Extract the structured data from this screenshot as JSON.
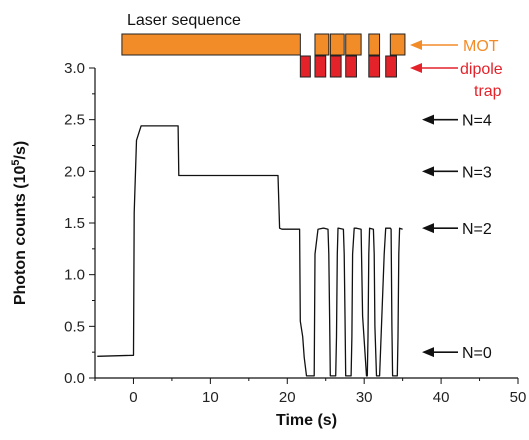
{
  "chart_data": {
    "type": "line",
    "xlabel": "Time (s)",
    "ylabel_main": "Photon counts (10",
    "ylabel_sup": "5",
    "ylabel_tail": "/s)",
    "xlim": [
      -5,
      50
    ],
    "ylim": [
      0,
      3.0
    ],
    "xticks": [
      0,
      10,
      20,
      30,
      40,
      50
    ],
    "xtick_labels": [
      "0",
      "10",
      "20",
      "30",
      "40",
      "50"
    ],
    "yticks": [
      0,
      0.5,
      1.0,
      1.5,
      2.0,
      2.5,
      3.0
    ],
    "ytick_labels": [
      "0.0",
      "0.5",
      "1.0",
      "1.5",
      "2.0",
      "2.5",
      "3.0"
    ],
    "series": [
      {
        "x": [
          -4.7,
          0.0,
          0.1,
          0.4,
          1.0,
          5.8,
          5.9,
          6.2,
          18.8,
          19.0,
          19.3,
          21.6,
          21.7,
          22.0,
          22.2,
          22.5,
          22.6,
          22.7,
          22.8,
          23.5,
          23.6,
          24.0,
          24.6,
          24.8,
          25.3,
          25.4,
          25.5,
          25.6,
          25.7,
          26.3,
          26.4,
          26.5,
          26.6,
          26.7,
          27.3,
          27.4,
          27.5,
          27.6,
          27.7,
          28.3,
          28.4,
          28.5,
          28.7,
          29.0,
          29.6,
          29.8,
          30.3,
          30.4,
          30.5,
          30.6,
          30.7,
          31.2,
          31.3,
          31.4,
          31.6,
          32.0,
          32.6,
          32.8,
          33.4,
          33.5,
          33.6,
          33.7,
          33.8,
          34.3,
          34.4,
          34.5,
          34.6,
          35.0
        ],
        "y": [
          0.21,
          0.22,
          1.6,
          2.3,
          2.44,
          2.44,
          1.96,
          1.96,
          1.96,
          1.45,
          1.44,
          1.44,
          0.55,
          0.4,
          0.2,
          0.02,
          0.02,
          0.02,
          0.02,
          0.02,
          1.2,
          1.44,
          1.45,
          1.45,
          1.44,
          1.2,
          0.6,
          0.02,
          0.02,
          0.02,
          0.4,
          1.2,
          1.45,
          1.45,
          1.44,
          1.2,
          0.6,
          0.02,
          0.02,
          0.02,
          0.4,
          1.2,
          1.45,
          1.45,
          1.44,
          0.6,
          0.02,
          0.02,
          0.4,
          1.2,
          1.45,
          1.44,
          1.2,
          0.5,
          0.02,
          0.02,
          1.2,
          1.45,
          1.45,
          1.44,
          0.5,
          0.02,
          0.02,
          0.02,
          0.4,
          1.2,
          1.45,
          1.44
        ]
      }
    ],
    "level_labels": [
      {
        "text": "N=4",
        "y": 2.5
      },
      {
        "text": "N=3",
        "y": 2.0
      },
      {
        "text": "N=2",
        "y": 1.45
      },
      {
        "text": "N=0",
        "y": 0.25
      }
    ],
    "laser_sequence": {
      "title": "Laser sequence",
      "mot_label": "MOT",
      "dipole_label_1": "dipole",
      "dipole_label_2": "trap",
      "mot_color": "#f28c28",
      "dipole_color": "#e4222a",
      "mot_intervals": [
        [
          -1.5,
          21.7
        ],
        [
          23.6,
          25.4
        ],
        [
          25.6,
          27.4
        ],
        [
          27.6,
          29.6
        ],
        [
          30.6,
          32.0
        ],
        [
          33.4,
          35.3
        ]
      ],
      "dipole_intervals": [
        [
          21.7,
          23.0
        ],
        [
          23.6,
          25.0
        ],
        [
          25.6,
          27.0
        ],
        [
          27.6,
          29.0
        ],
        [
          30.6,
          32.0
        ],
        [
          32.8,
          34.2
        ]
      ]
    },
    "line_color": "#111111",
    "arrow_color": "#111111",
    "grid": false
  }
}
